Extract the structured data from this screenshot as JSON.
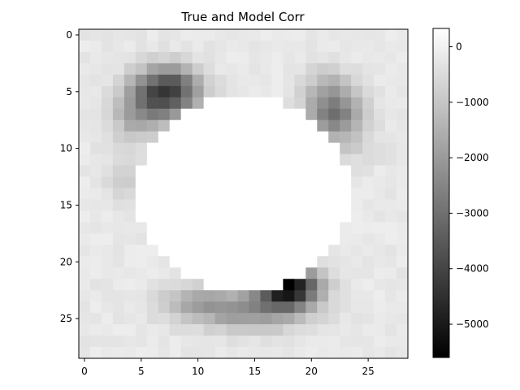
{
  "chart_data": {
    "type": "heatmap",
    "title": "True and Model Corr",
    "xlabel": "",
    "ylabel": "",
    "size": 29,
    "xlim": [
      -0.5,
      28.5
    ],
    "ylim": [
      28.5,
      -0.5
    ],
    "xticks": [
      0,
      5,
      10,
      15,
      20,
      25
    ],
    "yticks": [
      0,
      5,
      10,
      15,
      20,
      25
    ],
    "colormap": "gray",
    "vmin": -5600,
    "vmax": 330,
    "colorbar_ticks": [
      0,
      -1000,
      -2000,
      -3000,
      -4000,
      -5000
    ],
    "colorbar_labels": [
      "0",
      "−1000",
      "−2000",
      "−3000",
      "−4000",
      "−5000"
    ],
    "background_value": -200,
    "blobs": [
      {
        "x": 7.0,
        "y": 5.5,
        "sx": 2.2,
        "sy": 1.5,
        "peak": -3300
      },
      {
        "x": 7.5,
        "y": 4.0,
        "sx": 1.8,
        "sy": 1.2,
        "peak": -1400
      },
      {
        "x": 4.5,
        "y": 7.5,
        "sx": 1.5,
        "sy": 1.5,
        "peak": -1100
      },
      {
        "x": 22.0,
        "y": 7.0,
        "sx": 1.7,
        "sy": 1.4,
        "peak": -2600
      },
      {
        "x": 21.5,
        "y": 4.5,
        "sx": 1.5,
        "sy": 1.3,
        "peak": -1000
      },
      {
        "x": 18.0,
        "y": 22.2,
        "sx": 1.8,
        "sy": 1.2,
        "peak": -5400
      },
      {
        "x": 14.5,
        "y": 24.3,
        "sx": 3.5,
        "sy": 1.2,
        "peak": -2000
      },
      {
        "x": 9.5,
        "y": 23.5,
        "sx": 2.0,
        "sy": 1.0,
        "peak": -1100
      },
      {
        "x": 3.5,
        "y": 12.5,
        "sx": 1.2,
        "sy": 1.5,
        "peak": -600
      },
      {
        "x": 23.0,
        "y": 10.0,
        "sx": 2.0,
        "sy": 1.2,
        "peak": -500
      }
    ],
    "white_region": {
      "cx": 14.0,
      "cy": 14.0,
      "rx": 9.5,
      "ry": 8.5,
      "value": 330
    }
  }
}
